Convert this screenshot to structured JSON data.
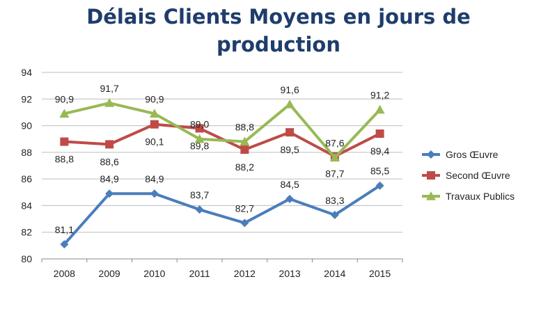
{
  "chart_data": {
    "type": "line",
    "title_line1": "Délais Clients Moyens en jours de",
    "title_line2": "production",
    "categories": [
      "2008",
      "2009",
      "2010",
      "2011",
      "2012",
      "2013",
      "2014",
      "2015"
    ],
    "ylim": [
      80,
      94
    ],
    "yticks": [
      "80",
      "82",
      "84",
      "86",
      "88",
      "90",
      "92",
      "94"
    ],
    "grid": true,
    "legend_position": "right",
    "series": [
      {
        "name": "Gros Œuvre",
        "color": "#4a7ebb",
        "marker": "diamond",
        "values": [
          81.1,
          84.9,
          84.9,
          83.7,
          82.7,
          84.5,
          83.3,
          85.5
        ],
        "labels": [
          "81,1",
          "84,9",
          "84,9",
          "83,7",
          "82,7",
          "84,5",
          "83,3",
          "85,5"
        ]
      },
      {
        "name": "Second Œuvre",
        "color": "#be4b48",
        "marker": "square",
        "values": [
          88.8,
          88.6,
          90.1,
          89.8,
          88.2,
          89.5,
          87.7,
          89.4
        ],
        "labels": [
          "88,8",
          "88,6",
          "90,1",
          "89,8",
          "88,2",
          "89,5",
          "87,7",
          "89,4"
        ]
      },
      {
        "name": "Travaux Publics",
        "color": "#98b954",
        "marker": "triangle",
        "values": [
          90.9,
          91.7,
          90.9,
          89.0,
          88.8,
          91.6,
          87.6,
          91.2
        ],
        "labels": [
          "90,9",
          "91,7",
          "90,9",
          "89,0",
          "88,8",
          "91,6",
          "87,6",
          "91,2"
        ]
      }
    ]
  }
}
